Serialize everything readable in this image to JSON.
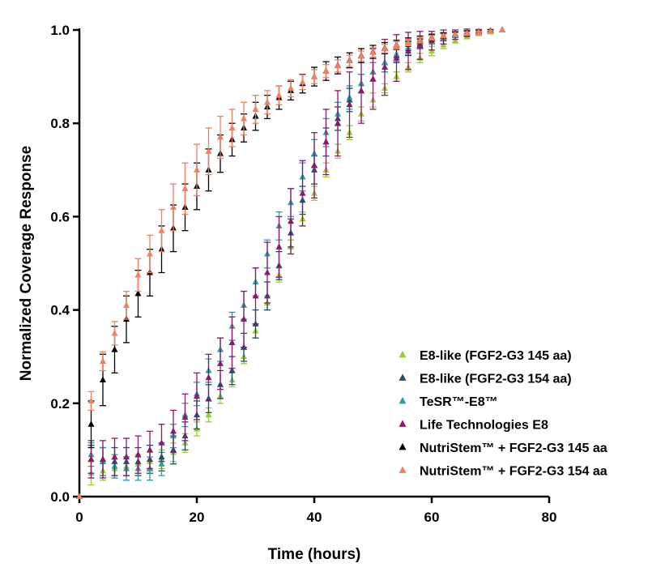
{
  "chart_data": {
    "type": "scatter",
    "title": "",
    "xlabel": "Time (hours)",
    "ylabel": "Normalized Coverage Response",
    "xlim": [
      0,
      80
    ],
    "ylim": [
      0,
      1
    ],
    "x_ticks": [
      0,
      20,
      40,
      60,
      80
    ],
    "y_ticks": [
      0.0,
      0.2,
      0.4,
      0.6,
      0.8,
      1.0
    ],
    "x_tick_labels": [
      "0",
      "20",
      "40",
      "60",
      "80"
    ],
    "y_tick_labels": [
      "0.0",
      "0.2",
      "0.4",
      "0.6",
      "0.8",
      "1.0"
    ],
    "grid": false,
    "legend_position": "bottom-right",
    "marker": "triangle",
    "x": [
      0,
      2,
      4,
      6,
      8,
      10,
      12,
      14,
      16,
      18,
      20,
      22,
      24,
      26,
      28,
      30,
      32,
      34,
      36,
      38,
      40,
      42,
      44,
      46,
      48,
      50,
      52,
      54,
      56,
      58,
      60,
      62,
      64,
      66,
      68,
      70,
      72
    ],
    "series": [
      {
        "name": "E8-like (FGF2-G3 145 aa)",
        "color": "#9acd32",
        "values": [
          0.0,
          0.05,
          0.055,
          0.06,
          0.065,
          0.07,
          0.075,
          0.08,
          0.095,
          0.115,
          0.145,
          0.175,
          0.215,
          0.25,
          0.3,
          0.355,
          0.415,
          0.475,
          0.535,
          0.595,
          0.65,
          0.7,
          0.74,
          0.78,
          0.82,
          0.85,
          0.875,
          0.9,
          0.92,
          0.94,
          0.955,
          0.968,
          0.978,
          0.986,
          0.992,
          0.996,
          1.0
        ],
        "errors": [
          0.0,
          0.025,
          0.02,
          0.02,
          0.02,
          0.02,
          0.02,
          0.02,
          0.02,
          0.02,
          0.015,
          0.015,
          0.015,
          0.015,
          0.015,
          0.015,
          0.015,
          0.015,
          0.015,
          0.015,
          0.015,
          0.015,
          0.015,
          0.015,
          0.015,
          0.015,
          0.01,
          0.01,
          0.01,
          0.01,
          0.01,
          0.008,
          0.006,
          0.005,
          0.004,
          0.003,
          0.0
        ]
      },
      {
        "name": "E8-like (FGF2-G3 154 aa)",
        "color": "#1f4e6e",
        "values": [
          0.0,
          0.08,
          0.075,
          0.075,
          0.075,
          0.075,
          0.08,
          0.085,
          0.1,
          0.13,
          0.175,
          0.21,
          0.24,
          0.27,
          0.32,
          0.37,
          0.43,
          0.495,
          0.565,
          0.635,
          0.7,
          0.76,
          0.81,
          0.85,
          0.885,
          0.91,
          0.93,
          0.945,
          0.96,
          0.97,
          0.98,
          0.985,
          0.99,
          0.993,
          0.996,
          0.998,
          1.0
        ],
        "errors": [
          0.0,
          0.03,
          0.03,
          0.03,
          0.03,
          0.03,
          0.03,
          0.03,
          0.03,
          0.03,
          0.03,
          0.03,
          0.03,
          0.03,
          0.03,
          0.03,
          0.03,
          0.03,
          0.03,
          0.03,
          0.03,
          0.03,
          0.025,
          0.025,
          0.02,
          0.02,
          0.02,
          0.015,
          0.015,
          0.01,
          0.01,
          0.008,
          0.006,
          0.005,
          0.004,
          0.003,
          0.0
        ]
      },
      {
        "name": "TeSR™-E8™",
        "color": "#2a9fa8",
        "values": [
          0.0,
          0.09,
          0.075,
          0.065,
          0.06,
          0.06,
          0.06,
          0.07,
          0.13,
          0.175,
          0.22,
          0.27,
          0.315,
          0.365,
          0.41,
          0.46,
          0.52,
          0.58,
          0.63,
          0.685,
          0.735,
          0.78,
          0.82,
          0.855,
          0.885,
          0.91,
          0.93,
          0.948,
          0.962,
          0.972,
          0.98,
          0.986,
          0.99,
          0.994,
          0.996,
          0.998,
          1.0
        ],
        "errors": [
          0.0,
          0.025,
          0.03,
          0.025,
          0.025,
          0.025,
          0.025,
          0.025,
          0.025,
          0.025,
          0.025,
          0.025,
          0.025,
          0.03,
          0.03,
          0.03,
          0.03,
          0.03,
          0.03,
          0.03,
          0.03,
          0.03,
          0.025,
          0.025,
          0.02,
          0.02,
          0.02,
          0.015,
          0.015,
          0.01,
          0.01,
          0.008,
          0.006,
          0.005,
          0.004,
          0.003,
          0.0
        ]
      },
      {
        "name": "Life Technologies E8",
        "color": "#8b1a6b",
        "values": [
          0.0,
          0.08,
          0.08,
          0.085,
          0.085,
          0.09,
          0.1,
          0.115,
          0.14,
          0.17,
          0.215,
          0.255,
          0.285,
          0.33,
          0.38,
          0.43,
          0.48,
          0.535,
          0.59,
          0.65,
          0.71,
          0.76,
          0.8,
          0.84,
          0.87,
          0.895,
          0.92,
          0.94,
          0.955,
          0.967,
          0.977,
          0.985,
          0.99,
          0.994,
          0.996,
          0.998,
          1.0
        ],
        "errors": [
          0.0,
          0.04,
          0.04,
          0.04,
          0.04,
          0.04,
          0.04,
          0.04,
          0.045,
          0.05,
          0.05,
          0.05,
          0.055,
          0.055,
          0.06,
          0.06,
          0.065,
          0.065,
          0.07,
          0.07,
          0.07,
          0.07,
          0.07,
          0.07,
          0.07,
          0.065,
          0.06,
          0.05,
          0.04,
          0.03,
          0.02,
          0.015,
          0.01,
          0.008,
          0.005,
          0.003,
          0.0
        ]
      },
      {
        "name": "NutriStem™ + FGF2-G3 145 aa",
        "color": "#000000",
        "values": [
          0.0,
          0.155,
          0.25,
          0.315,
          0.38,
          0.435,
          0.48,
          0.53,
          0.575,
          0.62,
          0.665,
          0.7,
          0.735,
          0.765,
          0.79,
          0.815,
          0.835,
          0.855,
          0.87,
          0.885,
          0.9,
          0.912,
          0.924,
          0.935,
          0.945,
          0.953,
          0.961,
          0.968,
          0.974,
          0.979,
          0.984,
          0.988,
          0.991,
          0.994,
          0.996,
          0.998,
          1.0
        ],
        "errors": [
          0.0,
          0.05,
          0.055,
          0.05,
          0.05,
          0.05,
          0.05,
          0.05,
          0.05,
          0.05,
          0.05,
          0.045,
          0.04,
          0.035,
          0.03,
          0.03,
          0.025,
          0.025,
          0.02,
          0.02,
          0.02,
          0.02,
          0.018,
          0.016,
          0.015,
          0.014,
          0.012,
          0.01,
          0.009,
          0.008,
          0.007,
          0.006,
          0.005,
          0.004,
          0.003,
          0.002,
          0.0
        ]
      },
      {
        "name": "NutriStem™ + FGF2-G3 154 aa",
        "color": "#f08060",
        "values": [
          0.0,
          0.205,
          0.29,
          0.35,
          0.41,
          0.475,
          0.52,
          0.57,
          0.62,
          0.66,
          0.7,
          0.74,
          0.77,
          0.79,
          0.81,
          0.83,
          0.845,
          0.86,
          0.875,
          0.888,
          0.9,
          0.912,
          0.923,
          0.934,
          0.944,
          0.952,
          0.96,
          0.967,
          0.973,
          0.978,
          0.983,
          0.987,
          0.99,
          0.993,
          0.995,
          0.997,
          1.0
        ],
        "errors": [
          0.0,
          0.02,
          0.02,
          0.025,
          0.03,
          0.035,
          0.04,
          0.045,
          0.05,
          0.055,
          0.055,
          0.05,
          0.045,
          0.04,
          0.035,
          0.03,
          0.025,
          0.02,
          0.018,
          0.016,
          0.015,
          0.014,
          0.013,
          0.012,
          0.011,
          0.01,
          0.009,
          0.008,
          0.007,
          0.006,
          0.005,
          0.004,
          0.004,
          0.003,
          0.003,
          0.002,
          0.0
        ]
      }
    ]
  }
}
